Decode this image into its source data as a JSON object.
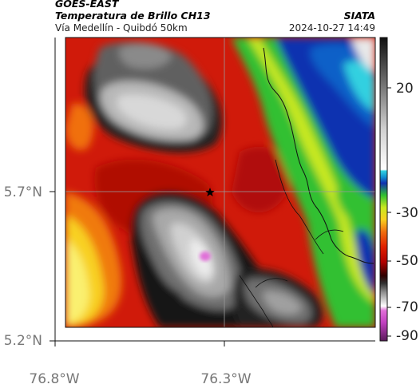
{
  "header": {
    "satellite": "GOES-EAST",
    "product": "Temperatura de Brillo CH13",
    "region": "Vía Medellín - Quibdó 50km",
    "org": "SIATA",
    "timestamp": "2024-10-27 14:49"
  },
  "axes": {
    "lat_labels": [
      "5.7°N",
      "5.2°N"
    ],
    "lon_labels": [
      "76.8°W",
      "76.3°W"
    ]
  },
  "colorbar": {
    "ticks": [
      "20",
      "-30",
      "-50",
      "-70",
      "-90"
    ]
  },
  "markers": {
    "star_icon": "black-star-icon"
  }
}
